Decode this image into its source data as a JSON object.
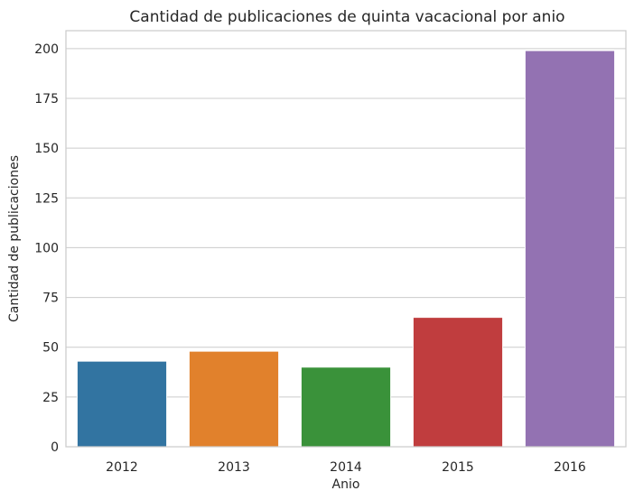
{
  "chart_data": {
    "type": "bar",
    "title": "Cantidad de publicaciones de quinta vacacional por anio",
    "xlabel": "Anio",
    "ylabel": "Cantidad de publicaciones",
    "categories": [
      "2012",
      "2013",
      "2014",
      "2015",
      "2016"
    ],
    "values": [
      43,
      48,
      40,
      65,
      199
    ],
    "colors": [
      "#3274a1",
      "#e1812c",
      "#3a923a",
      "#c03d3e",
      "#9372b2"
    ],
    "ylim": [
      0,
      209
    ],
    "yticks": [
      0,
      25,
      50,
      75,
      100,
      125,
      150,
      175,
      200
    ],
    "grid": true,
    "legend": "none"
  }
}
